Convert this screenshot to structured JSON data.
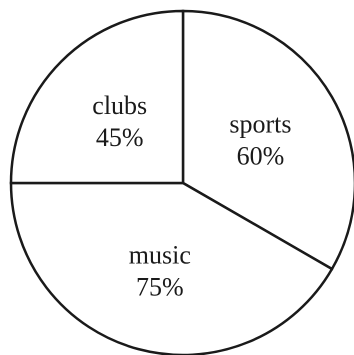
{
  "chart_data": {
    "type": "pie",
    "slices": [
      {
        "category": "sports",
        "value_label": "60%",
        "angle_deg": 120
      },
      {
        "category": "music",
        "value_label": "75%",
        "angle_deg": 150
      },
      {
        "category": "clubs",
        "value_label": "45%",
        "angle_deg": 90
      }
    ],
    "colors": {
      "stroke": "#1a1a1a",
      "fill": "#ffffff"
    }
  }
}
